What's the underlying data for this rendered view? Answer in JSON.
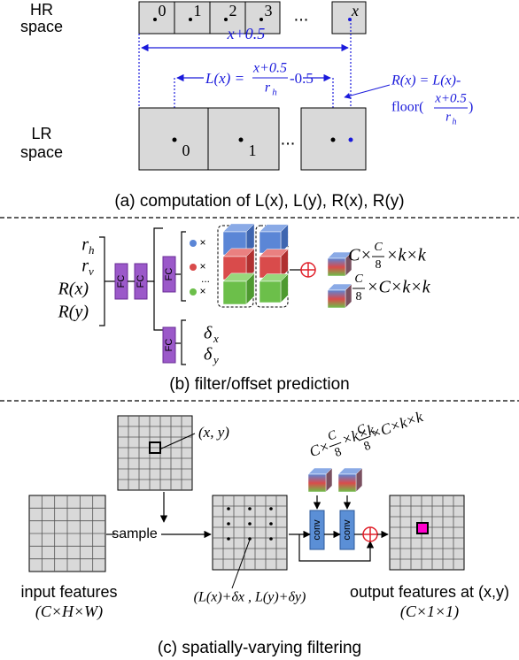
{
  "panel_a": {
    "hr_label": [
      "HR",
      "space"
    ],
    "hr_cells": [
      "0",
      "1",
      "2",
      "3",
      "x"
    ],
    "hr_ellipsis": "...",
    "lr_label": [
      "LR",
      "space"
    ],
    "lr_cells": [
      "0",
      "1"
    ],
    "lr_ellipsis": "...",
    "span_label": "x+0.5",
    "l_formula": {
      "lhs": "L(x) =",
      "num": "x+0.5",
      "den": "r",
      "den_sub": "h",
      "rhs": "-0.5"
    },
    "r_formula": {
      "lhs": "R(x) = L(x)-",
      "floor": "floor(",
      "num": "x+0.5",
      "den": "r",
      "den_sub": "h",
      "close": ")"
    },
    "caption": "(a) computation of L(x), L(y), R(x), R(y)"
  },
  "panel_b": {
    "inputs": [
      {
        "base": "r",
        "sub": "h"
      },
      {
        "base": "r",
        "sub": "v"
      },
      {
        "base": "R(x)"
      },
      {
        "base": "R(y)"
      }
    ],
    "fc": [
      "FC",
      "FC",
      "FC",
      "FC"
    ],
    "times": [
      "×",
      "×",
      "×"
    ],
    "dots": "...",
    "offsets": [
      {
        "base": "δ",
        "sub": "x"
      },
      {
        "base": "δ",
        "sub": "y"
      }
    ],
    "outputs": [
      {
        "pre": "C×",
        "num": "C",
        "den": "8",
        "post": "×k×k"
      },
      {
        "num": "C",
        "den": "8",
        "post": "×C×k×k"
      }
    ],
    "caption": "(b) filter/offset prediction"
  },
  "panel_c": {
    "point_label": "(x, y)",
    "sample": "sample",
    "conv": [
      "conv",
      "conv"
    ],
    "kernels": [
      {
        "pre": "C×",
        "num": "C",
        "den": "8",
        "post": "×k×k"
      },
      {
        "num": "C",
        "den": "8",
        "post": "×C×k×k"
      }
    ],
    "input_label": [
      "input features",
      "(C×H×W)"
    ],
    "sample_label": "(L(x)+δx , L(y)+δy)",
    "output_label": [
      "output features at (x,y)",
      "(C×1×1)"
    ],
    "caption": "(c) spatially-varying filtering"
  }
}
